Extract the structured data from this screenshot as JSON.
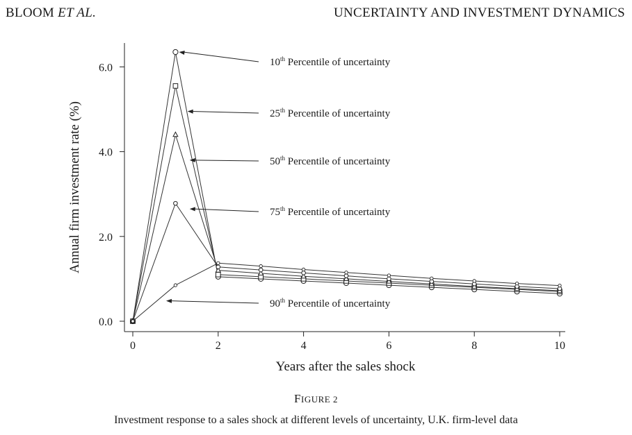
{
  "running_head": {
    "authors_plain": "BLOOM ",
    "authors_italic": "ET AL.",
    "title": "UNCERTAINTY AND INVESTMENT DYNAMICS"
  },
  "figure": {
    "label_first": "F",
    "label_rest": "IGURE 2",
    "caption": "Investment response to a sales shock at different levels of uncertainty, U.K. firm-level data"
  },
  "chart_data": {
    "type": "line",
    "xlabel": "Years after the sales shock",
    "ylabel": "Annual firm investment rate (%)",
    "xlim": [
      0,
      10
    ],
    "ylim": [
      0,
      6.5
    ],
    "xticks": [
      0,
      2,
      4,
      6,
      8,
      10
    ],
    "yticks": [
      "0.0",
      "2.0",
      "4.0",
      "6.0"
    ],
    "x": [
      0,
      1,
      2,
      3,
      4,
      5,
      6,
      7,
      8,
      9,
      10
    ],
    "series": [
      {
        "name": "10th Percentile of uncertainty",
        "marker": "circle",
        "values": [
          0,
          6.35,
          1.05,
          1.0,
          0.95,
          0.9,
          0.85,
          0.8,
          0.75,
          0.7,
          0.65
        ]
      },
      {
        "name": "25th Percentile of uncertainty",
        "marker": "square",
        "values": [
          0,
          5.55,
          1.1,
          1.05,
          1.0,
          0.95,
          0.9,
          0.85,
          0.8,
          0.75,
          0.7
        ]
      },
      {
        "name": "50th Percentile of uncertainty",
        "marker": "triangle",
        "values": [
          0,
          4.4,
          1.2,
          1.13,
          1.06,
          1.0,
          0.94,
          0.88,
          0.82,
          0.77,
          0.72
        ]
      },
      {
        "name": "75th Percentile of uncertainty",
        "marker": "small-circle",
        "values": [
          0,
          2.78,
          1.28,
          1.21,
          1.14,
          1.07,
          1.0,
          0.94,
          0.88,
          0.82,
          0.77
        ]
      },
      {
        "name": "90th Percentile of uncertainty",
        "marker": "dot",
        "values": [
          0,
          0.85,
          1.37,
          1.3,
          1.22,
          1.15,
          1.08,
          1.01,
          0.95,
          0.89,
          0.84
        ]
      }
    ],
    "annotations": [
      {
        "pre": "10",
        "sup": "th",
        "post": " Percentile of uncertainty",
        "series": 0,
        "point": [
          1,
          6.35
        ]
      },
      {
        "pre": "25",
        "sup": "th",
        "post": " Percentile of uncertainty",
        "series": 1,
        "point": [
          1.2,
          4.95
        ]
      },
      {
        "pre": "50",
        "sup": "th",
        "post": " Percentile of uncertainty",
        "series": 2,
        "point": [
          1.25,
          3.8
        ]
      },
      {
        "pre": "75",
        "sup": "th",
        "post": " Percentile of uncertainty",
        "series": 3,
        "point": [
          1.25,
          2.65
        ]
      },
      {
        "pre": "90",
        "sup": "th",
        "post": " Percentile of uncertainty",
        "series": 4,
        "point": [
          0.7,
          0.48
        ]
      }
    ]
  }
}
